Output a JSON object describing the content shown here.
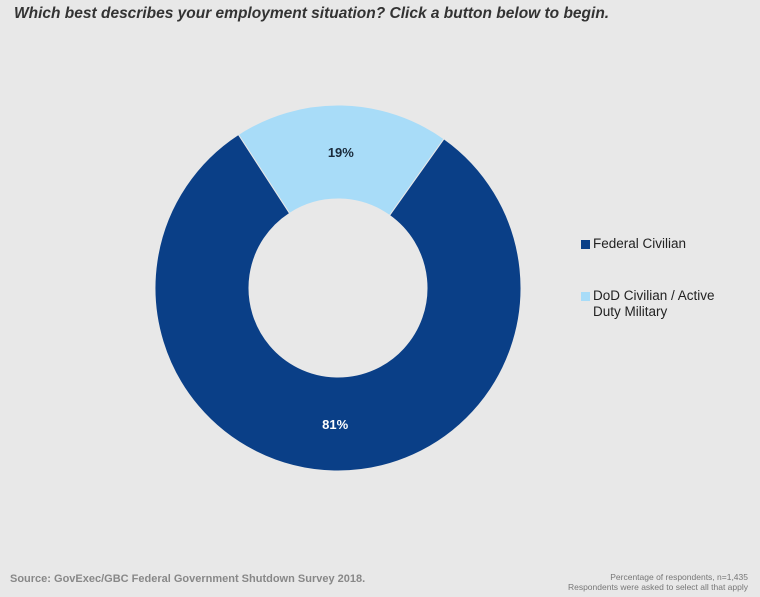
{
  "chart_data": {
    "type": "pie",
    "variant": "donut",
    "title": "Which best describes your employment situation? Click a button below to begin.",
    "slices": [
      {
        "label": "DoD Civilian / Active Duty Military",
        "value": 19,
        "data_label": "19%",
        "color": "#a8dcf8"
      },
      {
        "label": "Federal Civilian",
        "value": 81,
        "data_label": "81%",
        "color": "#0a3f87"
      }
    ],
    "legend_placement": "right"
  },
  "footer": {
    "source": "Source: GovExec/GBC Federal Government Shutdown Survey 2018.",
    "note1": "Percentage of respondents, n=1,435",
    "note2": "Respondents were asked to select all that apply"
  }
}
